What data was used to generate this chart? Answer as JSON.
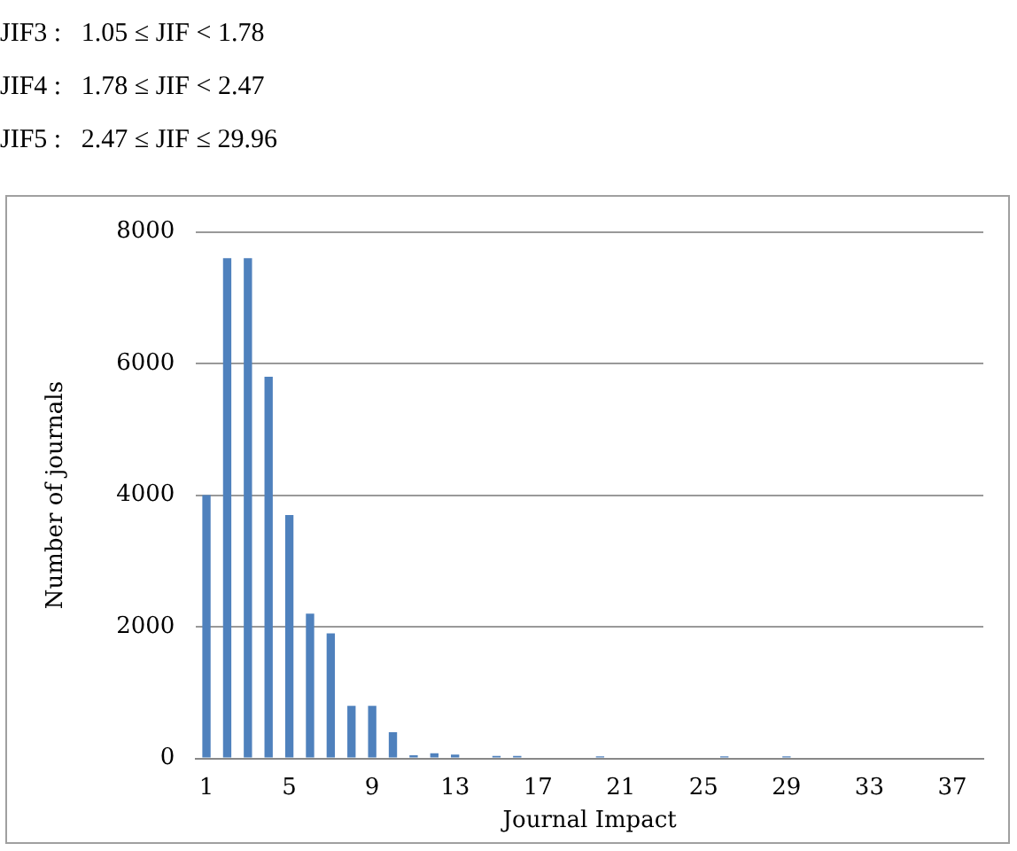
{
  "chart_data": {
    "type": "bar",
    "xlabel": "Journal Impact",
    "ylabel": "Number of journals",
    "annotations": [
      "JIF3 :   1.05 ≤ JIF < 1.78",
      "JIF4 :   1.78 ≤ JIF < 2.47",
      "JIF5 :   2.47 ≤ JIF ≤ 29.96"
    ],
    "categories": [
      "1",
      null,
      null,
      null,
      "5",
      null,
      null,
      null,
      "9",
      null,
      null,
      null,
      "13",
      null,
      null,
      null,
      "17",
      null,
      null,
      null,
      "21",
      null,
      null,
      null,
      "25",
      null,
      null,
      null,
      "29",
      null,
      null,
      null,
      "33",
      null,
      null,
      null,
      "37",
      null
    ],
    "values": [
      4000,
      7600,
      7600,
      5800,
      3700,
      2200,
      1900,
      800,
      800,
      400,
      50,
      80,
      60,
      0,
      40,
      40,
      0,
      0,
      0,
      30,
      0,
      0,
      0,
      0,
      0,
      30,
      0,
      0,
      30,
      0,
      0,
      0,
      0,
      0,
      0,
      0,
      0,
      0
    ],
    "color": "#4f81bd",
    "ylim": [
      0,
      8000
    ],
    "yticks": [
      0,
      2000,
      4000,
      6000,
      8000
    ],
    "grid": "y",
    "legend": false
  }
}
